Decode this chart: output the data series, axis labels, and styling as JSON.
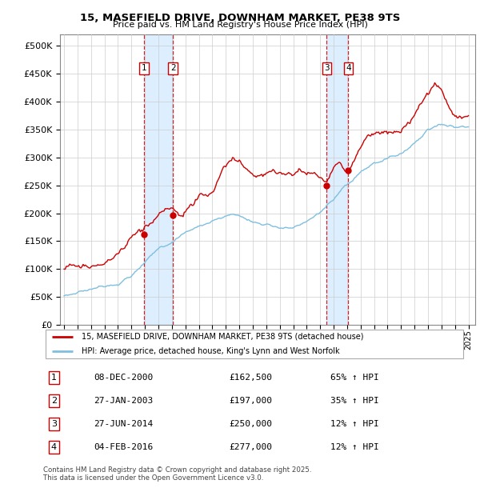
{
  "title": "15, MASEFIELD DRIVE, DOWNHAM MARKET, PE38 9TS",
  "subtitle": "Price paid vs. HM Land Registry's House Price Index (HPI)",
  "legend_line1": "15, MASEFIELD DRIVE, DOWNHAM MARKET, PE38 9TS (detached house)",
  "legend_line2": "HPI: Average price, detached house, King's Lynn and West Norfolk",
  "footer1": "Contains HM Land Registry data © Crown copyright and database right 2025.",
  "footer2": "This data is licensed under the Open Government Licence v3.0.",
  "transactions": [
    {
      "num": 1,
      "date": "08-DEC-2000",
      "price": "£162,500",
      "hpi": "65% ↑ HPI",
      "year": 2000.94
    },
    {
      "num": 2,
      "date": "27-JAN-2003",
      "price": "£197,000",
      "hpi": "35% ↑ HPI",
      "year": 2003.08
    },
    {
      "num": 3,
      "date": "27-JUN-2014",
      "price": "£250,000",
      "hpi": "12% ↑ HPI",
      "year": 2014.49
    },
    {
      "num": 4,
      "date": "04-FEB-2016",
      "price": "£277,000",
      "hpi": "12% ↑ HPI",
      "year": 2016.09
    }
  ],
  "transaction_prices": [
    162500,
    197000,
    250000,
    277000
  ],
  "hpi_color": "#7fbfdf",
  "price_color": "#cc0000",
  "vline_color": "#cc0000",
  "shade_color": "#ddeeff",
  "grid_color": "#cccccc",
  "ylim": [
    0,
    520000
  ],
  "yticks": [
    0,
    50000,
    100000,
    150000,
    200000,
    250000,
    300000,
    350000,
    400000,
    450000,
    500000
  ],
  "xlim_start": 1994.7,
  "xlim_end": 2025.5
}
